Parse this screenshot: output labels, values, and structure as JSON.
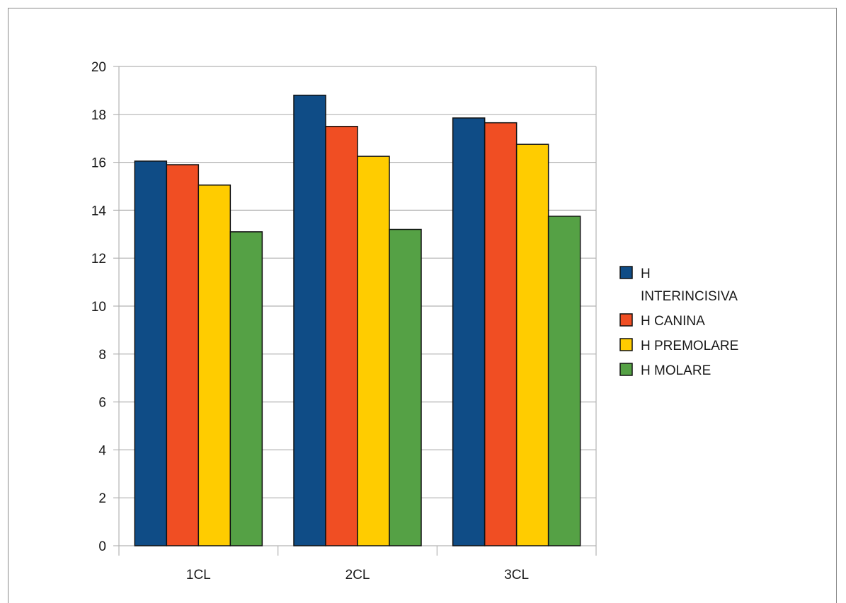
{
  "chart_data": {
    "type": "bar",
    "categories": [
      "1CL",
      "2CL",
      "3CL"
    ],
    "series": [
      {
        "name": "H INTERINCISIVA",
        "name_lines": [
          "H",
          "INTERINCISIVA"
        ],
        "color": "#0f4c86",
        "values": [
          16.05,
          18.8,
          17.85
        ]
      },
      {
        "name": "H CANINA",
        "name_lines": [
          "H CANINA"
        ],
        "color": "#f04e23",
        "values": [
          15.9,
          17.5,
          17.65
        ]
      },
      {
        "name": "H PREMOLARE",
        "name_lines": [
          "H PREMOLARE"
        ],
        "color": "#ffcc00",
        "values": [
          15.05,
          16.25,
          16.75
        ]
      },
      {
        "name": "H MOLARE",
        "name_lines": [
          "H MOLARE"
        ],
        "color": "#55a145",
        "values": [
          13.1,
          13.2,
          13.75
        ]
      }
    ],
    "y_ticks": [
      "0",
      "2",
      "4",
      "6",
      "8",
      "10",
      "12",
      "14",
      "16",
      "18",
      "20"
    ],
    "ylim": [
      0,
      20
    ],
    "title": "",
    "xlabel": "",
    "ylabel": "",
    "grid": true,
    "legend_position": "right"
  }
}
